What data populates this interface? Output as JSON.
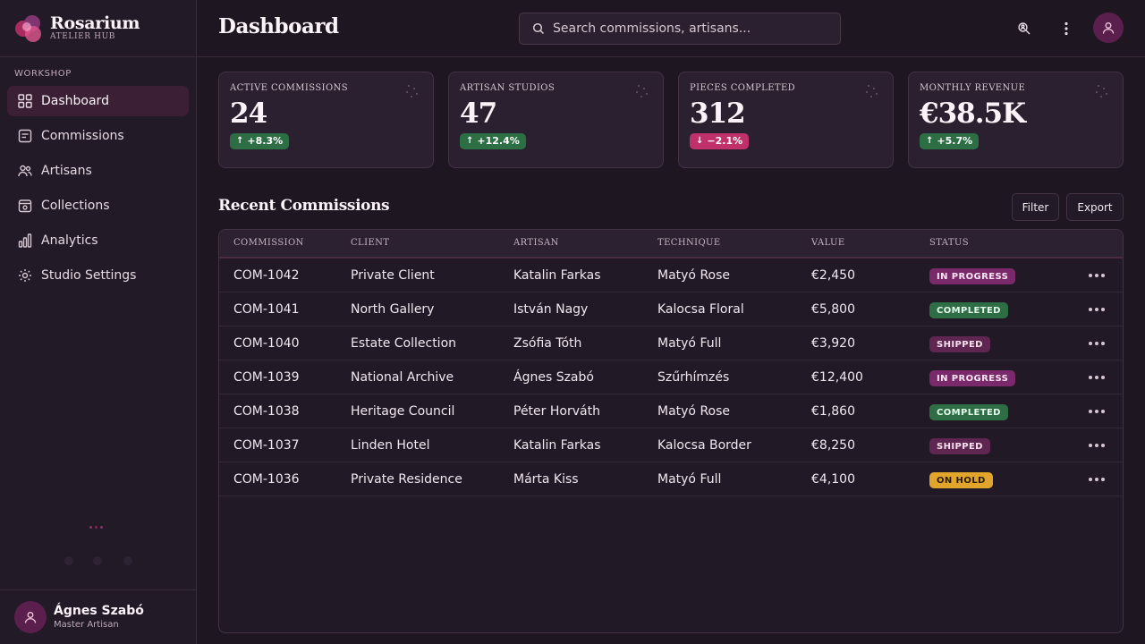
{
  "brand": {
    "name": "Rosarium",
    "tagline": "ATELIER HUB"
  },
  "sidebar": {
    "section": "WORKSHOP",
    "items": [
      {
        "label": "Dashboard",
        "icon": "grid-icon",
        "active": true
      },
      {
        "label": "Commissions",
        "icon": "document-icon"
      },
      {
        "label": "Artisans",
        "icon": "users-icon"
      },
      {
        "label": "Collections",
        "icon": "collection-icon"
      },
      {
        "label": "Analytics",
        "icon": "bar-chart-icon"
      },
      {
        "label": "Studio Settings",
        "icon": "gear-icon"
      }
    ],
    "user": {
      "name": "Ágnes Szabó",
      "role": "Master Artisan"
    }
  },
  "header": {
    "title": "Dashboard",
    "search_placeholder": "Search commissions, artisans..."
  },
  "stats": [
    {
      "label": "ACTIVE COMMISSIONS",
      "value": "24",
      "delta": "+8.3%",
      "direction": "up"
    },
    {
      "label": "ARTISAN STUDIOS",
      "value": "47",
      "delta": "+12.4%",
      "direction": "up"
    },
    {
      "label": "PIECES COMPLETED",
      "value": "312",
      "delta": "−2.1%",
      "direction": "down"
    },
    {
      "label": "MONTHLY REVENUE",
      "value": "€38.5K",
      "delta": "+5.7%",
      "direction": "up"
    }
  ],
  "recent": {
    "title": "Recent Commissions",
    "filter_label": "Filter",
    "export_label": "Export",
    "columns": [
      "COMMISSION",
      "CLIENT",
      "ARTISAN",
      "TECHNIQUE",
      "VALUE",
      "STATUS"
    ],
    "rows": [
      {
        "id": "COM-1042",
        "client": "Private Client",
        "artisan": "Katalin Farkas",
        "technique": "Matyó Rose",
        "value": "€2,450",
        "status": "IN PROGRESS"
      },
      {
        "id": "COM-1041",
        "client": "North Gallery",
        "artisan": "István Nagy",
        "technique": "Kalocsa Floral",
        "value": "€5,800",
        "status": "COMPLETED"
      },
      {
        "id": "COM-1040",
        "client": "Estate Collection",
        "artisan": "Zsófia Tóth",
        "technique": "Matyó Full",
        "value": "€3,920",
        "status": "SHIPPED"
      },
      {
        "id": "COM-1039",
        "client": "National Archive",
        "artisan": "Ágnes Szabó",
        "technique": "Szűrhímzés",
        "value": "€12,400",
        "status": "IN PROGRESS"
      },
      {
        "id": "COM-1038",
        "client": "Heritage Council",
        "artisan": "Péter Horváth",
        "technique": "Matyó Rose",
        "value": "€1,860",
        "status": "COMPLETED"
      },
      {
        "id": "COM-1037",
        "client": "Linden Hotel",
        "artisan": "Katalin Farkas",
        "technique": "Kalocsa Border",
        "value": "€8,250",
        "status": "SHIPPED"
      },
      {
        "id": "COM-1036",
        "client": "Private Residence",
        "artisan": "Márta Kiss",
        "technique": "Matyó Full",
        "value": "€4,100",
        "status": "ON HOLD"
      }
    ]
  },
  "colors": {
    "background": "#1e1722",
    "accent": "#5a1f4c",
    "positive": "#2d6e45",
    "negative": "#c0306b",
    "hold": "#e1a52b"
  }
}
